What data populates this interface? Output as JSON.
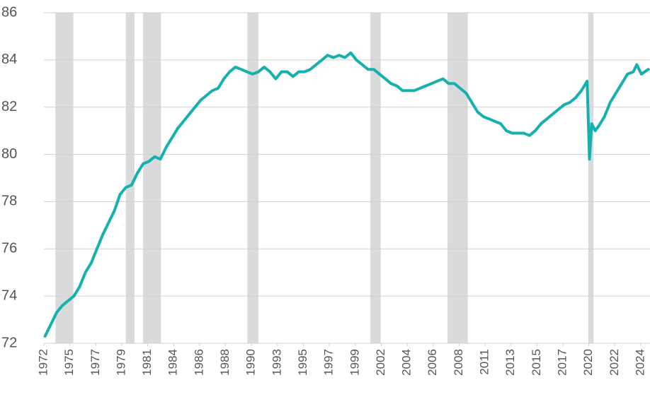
{
  "chart_data": {
    "type": "line",
    "color": "#16b0ae",
    "shade_color": "#d9dadc",
    "grid": true,
    "xlim": [
      1972.9,
      2025.45
    ],
    "ylim": [
      72,
      86
    ],
    "yticks": [
      72,
      74,
      76,
      78,
      80,
      82,
      84,
      86
    ],
    "xticks": [
      {
        "value": 1972.9,
        "label": "1972"
      },
      {
        "value": 1975.15,
        "label": "1975"
      },
      {
        "value": 1977.4,
        "label": "1977"
      },
      {
        "value": 1979.65,
        "label": "1979"
      },
      {
        "value": 1981.9,
        "label": "1981"
      },
      {
        "value": 1984.15,
        "label": "1984"
      },
      {
        "value": 1986.4,
        "label": "1986"
      },
      {
        "value": 1988.65,
        "label": "1988"
      },
      {
        "value": 1990.9,
        "label": "1990"
      },
      {
        "value": 1993.15,
        "label": "1993"
      },
      {
        "value": 1995.4,
        "label": "1995"
      },
      {
        "value": 1997.65,
        "label": "1997"
      },
      {
        "value": 1999.9,
        "label": "1999"
      },
      {
        "value": 2002.15,
        "label": "2002"
      },
      {
        "value": 2004.4,
        "label": "2004"
      },
      {
        "value": 2006.65,
        "label": "2006"
      },
      {
        "value": 2008.9,
        "label": "2008"
      },
      {
        "value": 2011.15,
        "label": "2011"
      },
      {
        "value": 2013.4,
        "label": "2013"
      },
      {
        "value": 2015.65,
        "label": "2015"
      },
      {
        "value": 2017.9,
        "label": "2017"
      },
      {
        "value": 2020.15,
        "label": "2020"
      },
      {
        "value": 2022.4,
        "label": "2022"
      },
      {
        "value": 2024.65,
        "label": "2024"
      }
    ],
    "shaded_periods": [
      [
        1973.9,
        1975.45
      ],
      [
        1980.0,
        1980.75
      ],
      [
        1981.5,
        1983.05
      ],
      [
        1990.55,
        1991.5
      ],
      [
        2001.2,
        2002.1
      ],
      [
        2007.9,
        2009.65
      ],
      [
        2020.1,
        2020.55
      ]
    ],
    "x": [
      1973.0,
      1973.5,
      1974.0,
      1974.5,
      1975.0,
      1975.5,
      1976.0,
      1976.5,
      1977.0,
      1977.5,
      1978.0,
      1978.5,
      1979.0,
      1979.5,
      1980.0,
      1980.5,
      1981.0,
      1981.5,
      1982.0,
      1982.5,
      1983.0,
      1983.5,
      1984.0,
      1984.5,
      1985.0,
      1985.5,
      1986.0,
      1986.5,
      1987.0,
      1987.5,
      1988.0,
      1988.5,
      1989.0,
      1989.5,
      1990.0,
      1990.5,
      1991.0,
      1991.5,
      1992.0,
      1992.5,
      1993.0,
      1993.5,
      1994.0,
      1994.5,
      1995.0,
      1995.5,
      1996.0,
      1996.5,
      1997.0,
      1997.5,
      1998.0,
      1998.5,
      1999.0,
      1999.5,
      2000.0,
      2000.5,
      2001.0,
      2001.5,
      2002.0,
      2002.5,
      2003.0,
      2003.5,
      2004.0,
      2004.5,
      2005.0,
      2005.5,
      2006.0,
      2006.5,
      2007.0,
      2007.5,
      2008.0,
      2008.5,
      2009.0,
      2009.5,
      2010.0,
      2010.5,
      2011.0,
      2011.5,
      2012.0,
      2012.5,
      2013.0,
      2013.5,
      2014.0,
      2014.5,
      2015.0,
      2015.5,
      2016.0,
      2016.5,
      2017.0,
      2017.5,
      2018.0,
      2018.5,
      2019.0,
      2019.5,
      2020.0,
      2020.2,
      2020.4,
      2020.7,
      2021.0,
      2021.5,
      2022.0,
      2022.5,
      2023.0,
      2023.5,
      2024.0,
      2024.3,
      2024.7,
      2025.3
    ],
    "values": [
      72.3,
      72.8,
      73.3,
      73.6,
      73.8,
      74.0,
      74.4,
      75.0,
      75.4,
      76.0,
      76.6,
      77.1,
      77.6,
      78.3,
      78.6,
      78.7,
      79.2,
      79.6,
      79.7,
      79.9,
      79.8,
      80.3,
      80.7,
      81.1,
      81.4,
      81.7,
      82.0,
      82.3,
      82.5,
      82.7,
      82.8,
      83.2,
      83.5,
      83.7,
      83.6,
      83.5,
      83.4,
      83.5,
      83.7,
      83.5,
      83.2,
      83.5,
      83.5,
      83.3,
      83.5,
      83.5,
      83.6,
      83.8,
      84.0,
      84.2,
      84.1,
      84.2,
      84.1,
      84.3,
      84.0,
      83.8,
      83.6,
      83.6,
      83.4,
      83.2,
      83.0,
      82.9,
      82.7,
      82.7,
      82.7,
      82.8,
      82.9,
      83.0,
      83.1,
      83.2,
      83.0,
      83.0,
      82.8,
      82.6,
      82.2,
      81.8,
      81.6,
      81.5,
      81.4,
      81.3,
      81.0,
      80.9,
      80.9,
      80.9,
      80.8,
      81.0,
      81.3,
      81.5,
      81.7,
      81.9,
      82.1,
      82.2,
      82.4,
      82.7,
      83.1,
      79.8,
      81.3,
      81.0,
      81.2,
      81.6,
      82.2,
      82.6,
      83.0,
      83.4,
      83.5,
      83.8,
      83.4,
      83.6
    ]
  }
}
